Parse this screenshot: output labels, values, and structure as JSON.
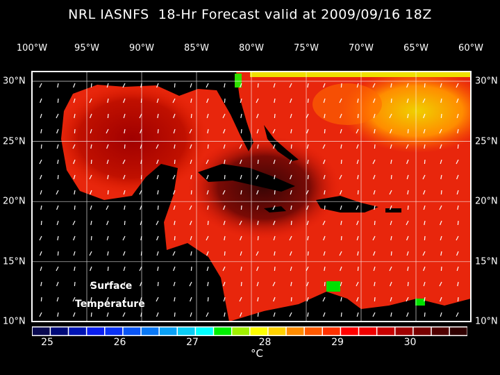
{
  "title": "NRL IASNFS  18-Hr Forecast valid at 2009/09/16 18Z",
  "lon_labels": [
    "100°W",
    "95°W",
    "90°W",
    "85°W",
    "80°W",
    "75°W",
    "70°W",
    "65°W",
    "60°W"
  ],
  "lat_labels": [
    "30°N",
    "25°N",
    "20°N",
    "15°N",
    "10°N"
  ],
  "overlay": {
    "line1": "Surface",
    "line2": "Temperature"
  },
  "colorbar": {
    "labels": [
      "25",
      "26",
      "27",
      "28",
      "29",
      "30"
    ],
    "unit": "°C",
    "colors": [
      "#0a0a50",
      "#000a78",
      "#0014b4",
      "#0a1ef0",
      "#0a32f5",
      "#0a55f5",
      "#0a78f5",
      "#0aa0f5",
      "#0acdf5",
      "#00ffff",
      "#00f000",
      "#a0f000",
      "#ffff00",
      "#ffd200",
      "#ff8c00",
      "#ff5a00",
      "#ff3200",
      "#ff0000",
      "#f00000",
      "#c80000",
      "#a00000",
      "#780000",
      "#500000",
      "#300000"
    ]
  }
}
